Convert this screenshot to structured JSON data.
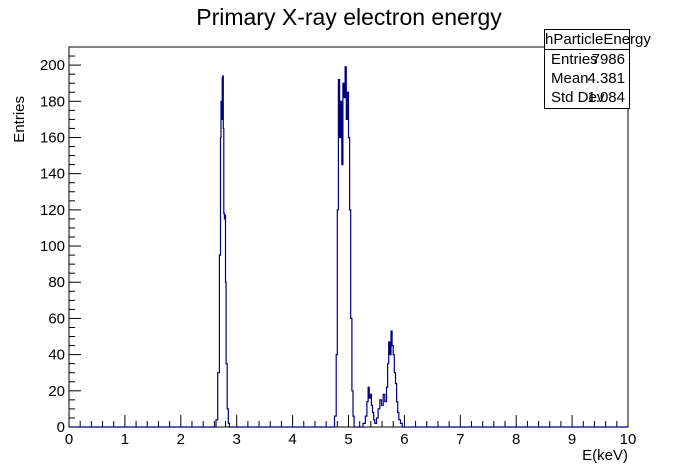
{
  "chart_data": {
    "type": "line",
    "title": "Primary X-ray electron energy",
    "xlabel": "E(keV)",
    "ylabel": "Entries",
    "xlim": [
      0,
      10
    ],
    "ylim": [
      0,
      210
    ],
    "x_ticks": [
      0,
      1,
      2,
      3,
      4,
      5,
      6,
      7,
      8,
      9,
      10
    ],
    "y_ticks": [
      0,
      20,
      40,
      60,
      80,
      100,
      120,
      140,
      160,
      180,
      200
    ],
    "grid": false,
    "line_color": "#000080",
    "series": [
      {
        "values": [
          [
            0,
            0
          ],
          [
            2.6,
            0
          ],
          [
            2.63,
            4
          ],
          [
            2.66,
            30
          ],
          [
            2.69,
            95
          ],
          [
            2.71,
            160
          ],
          [
            2.72,
            180
          ],
          [
            2.73,
            170
          ],
          [
            2.74,
            193
          ],
          [
            2.75,
            194
          ],
          [
            2.76,
            165
          ],
          [
            2.77,
            118
          ],
          [
            2.78,
            115
          ],
          [
            2.79,
            117
          ],
          [
            2.8,
            80
          ],
          [
            2.81,
            35
          ],
          [
            2.83,
            10
          ],
          [
            2.85,
            2
          ],
          [
            2.87,
            0
          ],
          [
            4.72,
            0
          ],
          [
            4.75,
            6
          ],
          [
            4.78,
            40
          ],
          [
            4.8,
            120
          ],
          [
            4.82,
            192
          ],
          [
            4.84,
            160
          ],
          [
            4.86,
            180
          ],
          [
            4.88,
            145
          ],
          [
            4.9,
            190
          ],
          [
            4.92,
            182
          ],
          [
            4.94,
            199
          ],
          [
            4.96,
            170
          ],
          [
            4.98,
            185
          ],
          [
            5.0,
            160
          ],
          [
            5.02,
            120
          ],
          [
            5.04,
            60
          ],
          [
            5.06,
            20
          ],
          [
            5.08,
            6
          ],
          [
            5.1,
            0
          ],
          [
            5.22,
            0
          ],
          [
            5.26,
            2
          ],
          [
            5.3,
            6
          ],
          [
            5.33,
            14
          ],
          [
            5.35,
            22
          ],
          [
            5.37,
            16
          ],
          [
            5.39,
            18
          ],
          [
            5.41,
            12
          ],
          [
            5.43,
            8
          ],
          [
            5.45,
            4
          ],
          [
            5.47,
            2
          ],
          [
            5.5,
            5
          ],
          [
            5.53,
            10
          ],
          [
            5.56,
            15
          ],
          [
            5.59,
            12
          ],
          [
            5.62,
            18
          ],
          [
            5.65,
            14
          ],
          [
            5.68,
            22
          ],
          [
            5.7,
            35
          ],
          [
            5.72,
            47
          ],
          [
            5.74,
            40
          ],
          [
            5.76,
            53
          ],
          [
            5.78,
            45
          ],
          [
            5.8,
            40
          ],
          [
            5.82,
            30
          ],
          [
            5.84,
            24
          ],
          [
            5.86,
            14
          ],
          [
            5.88,
            8
          ],
          [
            5.9,
            4
          ],
          [
            5.93,
            2
          ],
          [
            5.96,
            0
          ],
          [
            10,
            0
          ]
        ]
      }
    ]
  },
  "stats_box": {
    "name": "hParticleEnergy",
    "rows": [
      {
        "key": "Entries",
        "value": "7986"
      },
      {
        "key": "Mean",
        "value": "4.381"
      },
      {
        "key": "Std Dev",
        "value": "1.084"
      }
    ]
  }
}
